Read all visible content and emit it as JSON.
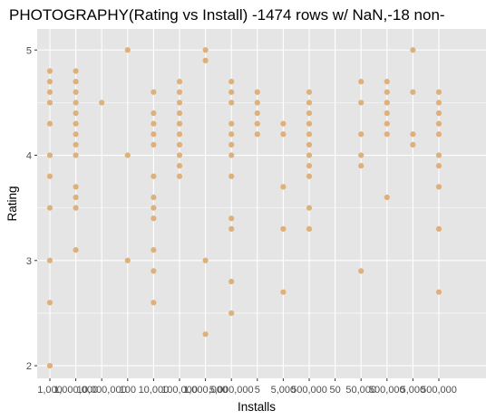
{
  "chart_data": {
    "type": "scatter",
    "title": "PHOTOGRAPHY(Rating vs Install) -1474 rows w/ NaN,-18 non-",
    "xlabel": "Installs",
    "ylabel": "Rating",
    "ylim": [
      1.88,
      5.2
    ],
    "y_ticks": [
      2,
      3,
      4,
      5
    ],
    "point_color": "#DEB07A",
    "panel_bg": "#E5E5E5",
    "grid": true,
    "categories": [
      "1,000",
      "1,000,000",
      "10,000,000",
      "100",
      "10,000",
      "100,000",
      "1,000,000",
      "5,000,000",
      "5",
      "5,000",
      "500,000",
      "50",
      "50,000",
      "500,000",
      "5,000",
      "500,000"
    ],
    "points": [
      {
        "x": "1,000",
        "y": 4.8
      },
      {
        "x": "1,000",
        "y": 4.7
      },
      {
        "x": "1,000",
        "y": 4.6
      },
      {
        "x": "1,000",
        "y": 4.5
      },
      {
        "x": "1,000",
        "y": 4.3
      },
      {
        "x": "1,000",
        "y": 4.0
      },
      {
        "x": "1,000",
        "y": 3.8
      },
      {
        "x": "1,000",
        "y": 3.5
      },
      {
        "x": "1,000",
        "y": 3.0
      },
      {
        "x": "1,000",
        "y": 2.6
      },
      {
        "x": "1,000",
        "y": 2.0
      },
      {
        "x": "1,000,000",
        "y": 4.8
      },
      {
        "x": "1,000,000",
        "y": 4.7
      },
      {
        "x": "1,000,000",
        "y": 4.6
      },
      {
        "x": "1,000,000",
        "y": 4.5
      },
      {
        "x": "1,000,000",
        "y": 4.4
      },
      {
        "x": "1,000,000",
        "y": 4.3
      },
      {
        "x": "1,000,000",
        "y": 4.2
      },
      {
        "x": "1,000,000",
        "y": 4.1
      },
      {
        "x": "1,000,000",
        "y": 4.0
      },
      {
        "x": "1,000,000",
        "y": 3.7
      },
      {
        "x": "1,000,000",
        "y": 3.6
      },
      {
        "x": "1,000,000",
        "y": 3.5
      },
      {
        "x": "1,000,000",
        "y": 3.1
      },
      {
        "x": "10,000,000",
        "y": 4.5
      },
      {
        "x": "100",
        "y": 5.0
      },
      {
        "x": "100",
        "y": 4.0
      },
      {
        "x": "100",
        "y": 3.0
      },
      {
        "x": "10,000",
        "y": 4.6
      },
      {
        "x": "10,000",
        "y": 4.4
      },
      {
        "x": "10,000",
        "y": 4.3
      },
      {
        "x": "10,000",
        "y": 4.2
      },
      {
        "x": "10,000",
        "y": 4.1
      },
      {
        "x": "10,000",
        "y": 3.8
      },
      {
        "x": "10,000",
        "y": 3.6
      },
      {
        "x": "10,000",
        "y": 3.5
      },
      {
        "x": "10,000",
        "y": 3.4
      },
      {
        "x": "10,000",
        "y": 3.1
      },
      {
        "x": "10,000",
        "y": 2.9
      },
      {
        "x": "10,000",
        "y": 2.6
      },
      {
        "x": "100,000",
        "y": 4.7
      },
      {
        "x": "100,000",
        "y": 4.6
      },
      {
        "x": "100,000",
        "y": 4.5
      },
      {
        "x": "100,000",
        "y": 4.4
      },
      {
        "x": "100,000",
        "y": 4.3
      },
      {
        "x": "100,000",
        "y": 4.2
      },
      {
        "x": "100,000",
        "y": 4.1
      },
      {
        "x": "100,000",
        "y": 4.0
      },
      {
        "x": "100,000",
        "y": 3.9
      },
      {
        "x": "100,000",
        "y": 3.8
      },
      {
        "x": "1,000,000",
        "y": 5.0
      },
      {
        "x": "1,000,000",
        "y": 4.9
      },
      {
        "x": "1,000,000",
        "y": 3.0
      },
      {
        "x": "1,000,000",
        "y": 2.3
      },
      {
        "x": "5,000,000",
        "y": 4.7
      },
      {
        "x": "5,000,000",
        "y": 4.6
      },
      {
        "x": "5,000,000",
        "y": 4.5
      },
      {
        "x": "5,000,000",
        "y": 4.3
      },
      {
        "x": "5,000,000",
        "y": 4.2
      },
      {
        "x": "5,000,000",
        "y": 4.1
      },
      {
        "x": "5,000,000",
        "y": 4.0
      },
      {
        "x": "5,000,000",
        "y": 3.8
      },
      {
        "x": "5,000,000",
        "y": 3.4
      },
      {
        "x": "5,000,000",
        "y": 3.3
      },
      {
        "x": "5,000,000",
        "y": 2.8
      },
      {
        "x": "5,000,000",
        "y": 2.5
      },
      {
        "x": "5",
        "y": 4.6
      },
      {
        "x": "5",
        "y": 4.5
      },
      {
        "x": "5",
        "y": 4.4
      },
      {
        "x": "5",
        "y": 4.3
      },
      {
        "x": "5",
        "y": 4.2
      },
      {
        "x": "5,000",
        "y": 4.3
      },
      {
        "x": "5,000",
        "y": 4.2
      },
      {
        "x": "5,000",
        "y": 3.7
      },
      {
        "x": "5,000",
        "y": 3.3
      },
      {
        "x": "5,000",
        "y": 2.7
      },
      {
        "x": "500,000",
        "y": 4.6
      },
      {
        "x": "500,000",
        "y": 4.5
      },
      {
        "x": "500,000",
        "y": 4.4
      },
      {
        "x": "500,000",
        "y": 4.3
      },
      {
        "x": "500,000",
        "y": 4.2
      },
      {
        "x": "500,000",
        "y": 4.1
      },
      {
        "x": "500,000",
        "y": 4.0
      },
      {
        "x": "500,000",
        "y": 3.9
      },
      {
        "x": "500,000",
        "y": 3.8
      },
      {
        "x": "500,000",
        "y": 3.5
      },
      {
        "x": "500,000",
        "y": 3.3
      },
      {
        "x": "50,000",
        "y": 4.7
      },
      {
        "x": "50,000",
        "y": 4.5
      },
      {
        "x": "50,000",
        "y": 4.2
      },
      {
        "x": "50,000",
        "y": 4.0
      },
      {
        "x": "50,000",
        "y": 3.9
      },
      {
        "x": "50,000",
        "y": 2.9
      },
      {
        "x": "500,000",
        "y": 4.7
      },
      {
        "x": "500,000",
        "y": 4.6
      },
      {
        "x": "500,000",
        "y": 4.5
      },
      {
        "x": "500,000",
        "y": 4.4
      },
      {
        "x": "500,000",
        "y": 4.3
      },
      {
        "x": "500,000",
        "y": 4.2
      },
      {
        "x": "500,000",
        "y": 3.6
      },
      {
        "x": "5,000",
        "y": 5.0
      },
      {
        "x": "5,000",
        "y": 4.6
      },
      {
        "x": "5,000",
        "y": 4.2
      },
      {
        "x": "5,000",
        "y": 4.1
      },
      {
        "x": "500,000",
        "y": 4.6
      },
      {
        "x": "500,000",
        "y": 4.5
      },
      {
        "x": "500,000",
        "y": 4.4
      },
      {
        "x": "500,000",
        "y": 4.3
      },
      {
        "x": "500,000",
        "y": 4.2
      },
      {
        "x": "500,000",
        "y": 4.0
      },
      {
        "x": "500,000",
        "y": 3.9
      },
      {
        "x": "500,000",
        "y": 3.7
      },
      {
        "x": "500,000",
        "y": 3.3
      },
      {
        "x": "500,000",
        "y": 2.7
      }
    ]
  }
}
